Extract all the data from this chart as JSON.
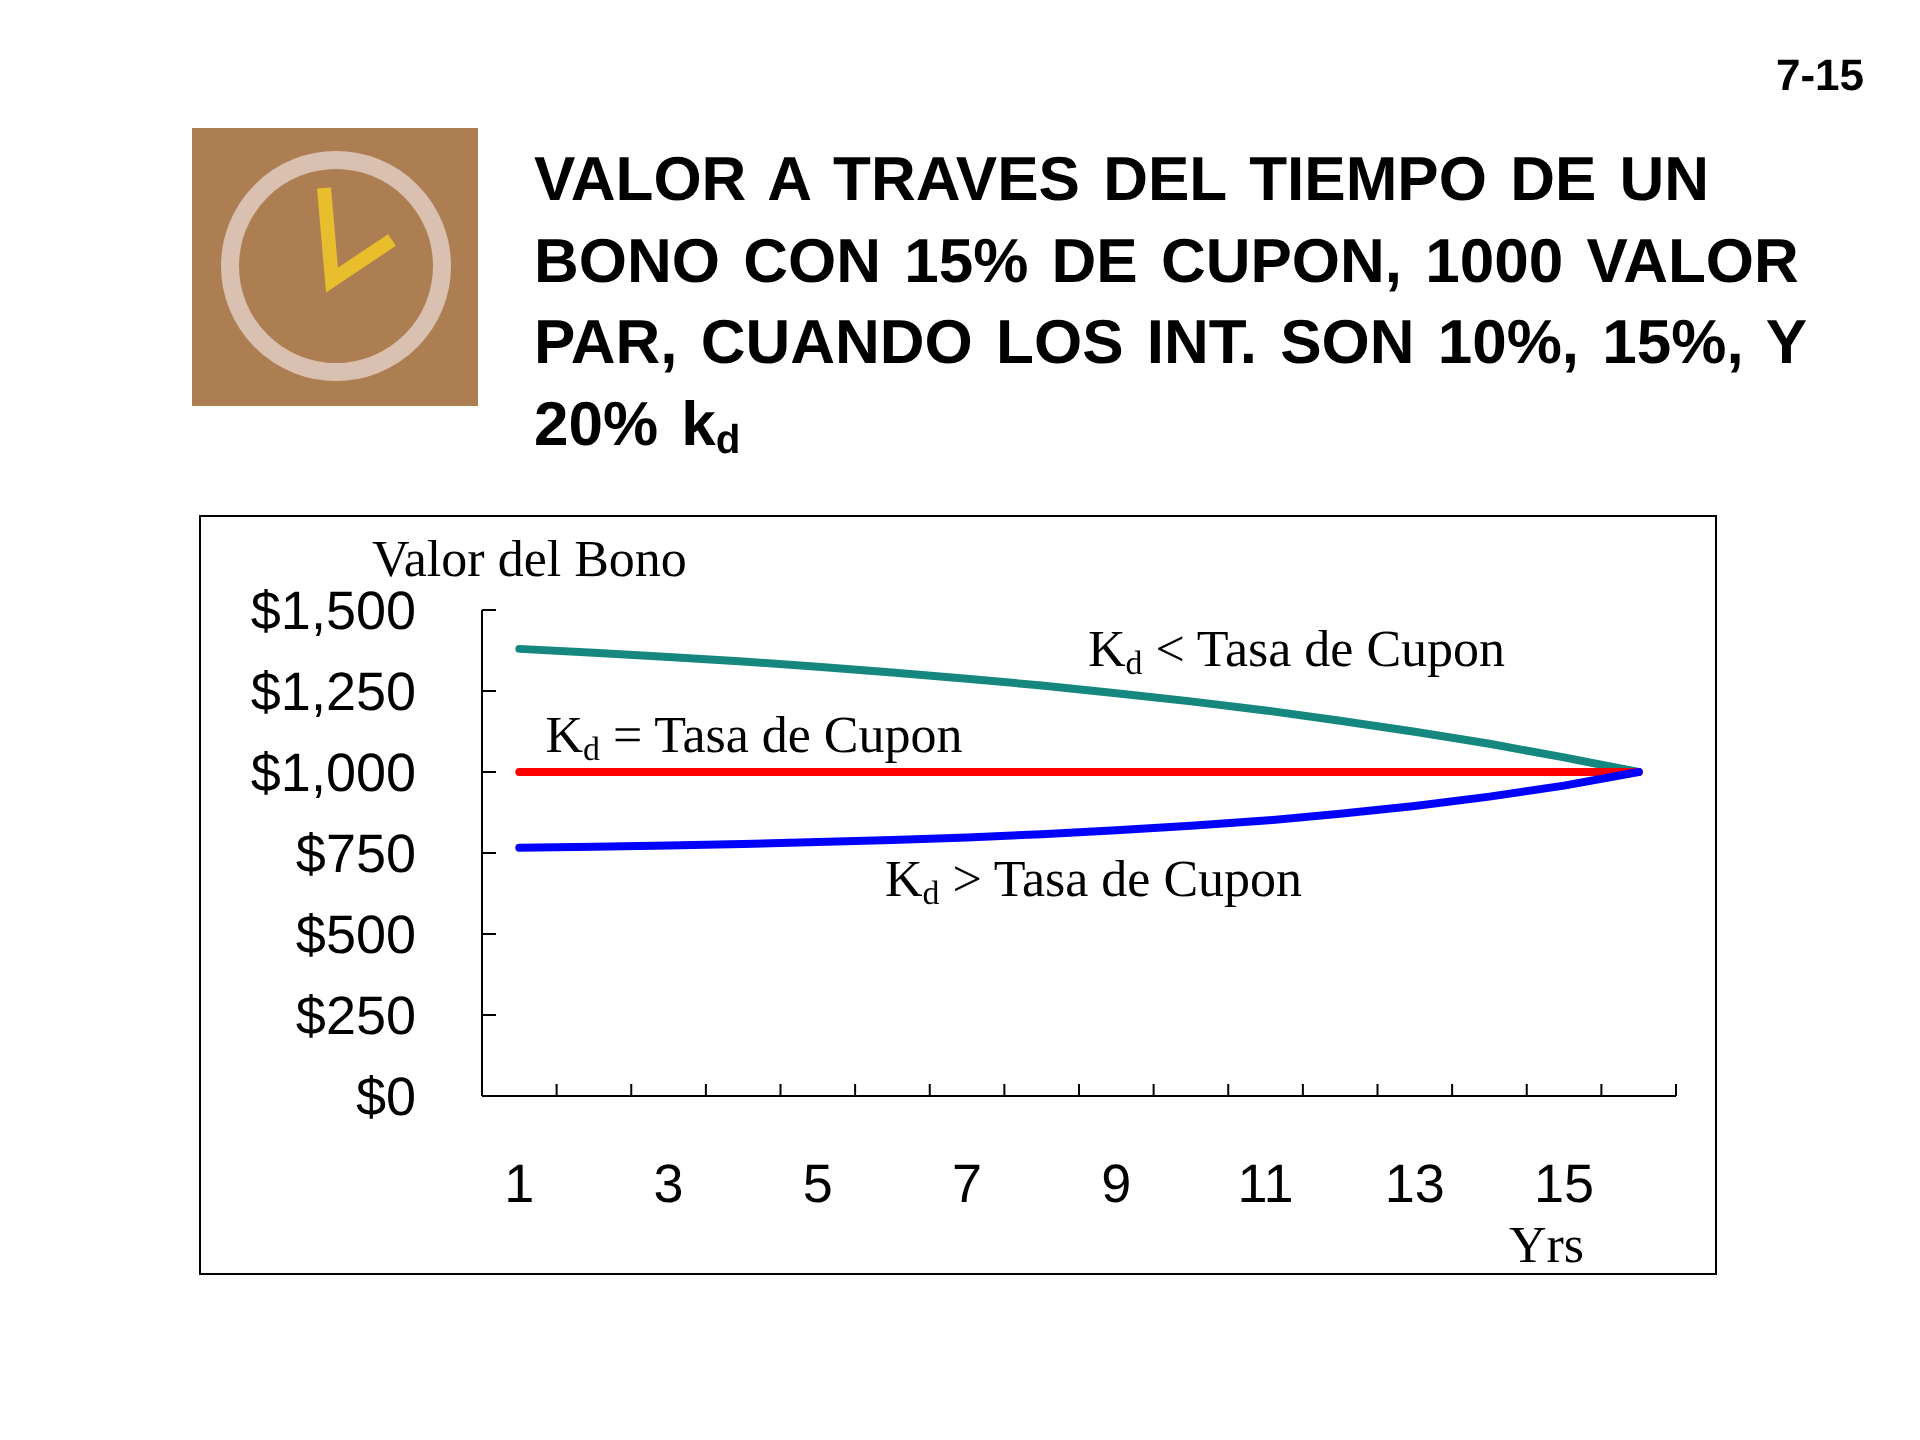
{
  "chart_data": {
    "type": "line",
    "title": "VALOR A TRAVES DEL TIEMPO DE UN BONO CON 15% DE CUPON, 1000 VALOR PAR, CUANDO LOS INT. SON 10%, 15%, Y 20% k$_{d}$",
    "ylabel": "Valor del Bono",
    "xlabel": "Yrs",
    "annotations": [
      "7-15"
    ],
    "x": [
      1,
      2,
      3,
      4,
      5,
      6,
      7,
      8,
      9,
      10,
      11,
      12,
      13,
      14,
      15,
      16
    ],
    "series": [
      {
        "name": "K$_{d}$ < Tasa de Cupon",
        "color": "#16877f",
        "values": [
          1380,
          1368,
          1355,
          1341,
          1325,
          1307,
          1288,
          1267,
          1243,
          1218,
          1190,
          1158,
          1124,
          1087,
          1045,
          1000
        ]
      },
      {
        "name": "K$_{d}$ = Tasa de Cupon",
        "color": "#ff0000",
        "values": [
          1000,
          1000,
          1000,
          1000,
          1000,
          1000,
          1000,
          1000,
          1000,
          1000,
          1000,
          1000,
          1000,
          1000,
          1000,
          1000
        ]
      },
      {
        "name": "K$_{d}$ > Tasa de Cupon",
        "color": "#0000ff",
        "values": [
          766,
          769,
          773,
          778,
          784,
          790,
          798,
          808,
          820,
          834,
          850,
          871,
          895,
          924,
          958,
          1000
        ]
      }
    ],
    "xlim": [
      0.5,
      16.5
    ],
    "xticks": [
      1,
      {
        "value": 1.5,
        "label": null
      },
      {
        "value": 2.5,
        "label": null
      },
      3,
      {
        "value": 3.5,
        "label": null
      },
      {
        "value": 4.5,
        "label": null
      },
      5,
      {
        "value": 5.5,
        "label": null
      },
      {
        "value": 6.5,
        "label": null
      },
      7,
      {
        "value": 7.5,
        "label": null
      },
      {
        "value": 8.5,
        "label": null
      },
      9,
      {
        "value": 9.5,
        "label": null
      },
      {
        "value": 10.5,
        "label": null
      },
      11,
      {
        "value": 11.5,
        "label": null
      },
      {
        "value": 12.5,
        "label": null
      },
      13,
      {
        "value": 13.5,
        "label": null
      },
      {
        "value": 14.5,
        "label": null
      },
      15,
      {
        "value": 15.5,
        "label": null
      },
      {
        "value": 16.5,
        "label": null
      }
    ],
    "ylim": [
      0,
      1500
    ],
    "yticks": [
      {
        "value": 0,
        "label": "$0"
      },
      {
        "value": 250,
        "label": "$250"
      },
      {
        "value": 500,
        "label": "$500"
      },
      {
        "value": 750,
        "label": "$750"
      },
      {
        "value": 1000,
        "label": "$1,000"
      },
      {
        "value": 1250,
        "label": "$1,250"
      },
      {
        "value": 1500,
        "label": "$1,500"
      }
    ],
    "line_style": "solid"
  }
}
